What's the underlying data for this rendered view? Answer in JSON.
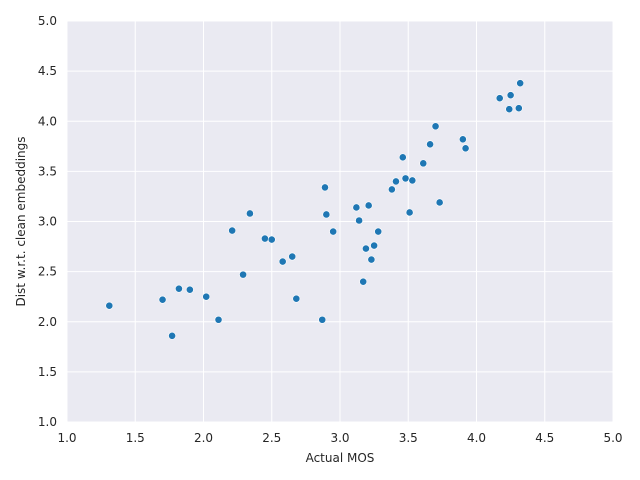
{
  "chart_data": {
    "type": "scatter",
    "title": "",
    "xlabel": "Actual MOS",
    "ylabel": "Dist w.r.t. clean embeddings",
    "xlim": [
      1.0,
      5.0
    ],
    "ylim": [
      1.0,
      5.0
    ],
    "xticks": [
      "1.0",
      "1.5",
      "2.0",
      "2.5",
      "3.0",
      "3.5",
      "4.0",
      "4.5",
      "5.0"
    ],
    "yticks": [
      "1.0",
      "1.5",
      "2.0",
      "2.5",
      "3.0",
      "3.5",
      "4.0",
      "4.5",
      "5.0"
    ],
    "grid": true,
    "background": "#eaeaf2",
    "grid_color": "#ffffff",
    "point_color": "#1f77b4",
    "series": [
      {
        "points": [
          [
            1.31,
            2.16
          ],
          [
            1.7,
            2.22
          ],
          [
            1.77,
            1.86
          ],
          [
            1.82,
            2.33
          ],
          [
            1.9,
            2.32
          ],
          [
            2.02,
            2.25
          ],
          [
            2.11,
            2.02
          ],
          [
            2.21,
            2.91
          ],
          [
            2.29,
            2.47
          ],
          [
            2.34,
            3.08
          ],
          [
            2.45,
            2.83
          ],
          [
            2.5,
            2.82
          ],
          [
            2.58,
            2.6
          ],
          [
            2.65,
            2.65
          ],
          [
            2.68,
            2.23
          ],
          [
            2.87,
            2.02
          ],
          [
            2.89,
            3.34
          ],
          [
            2.9,
            3.07
          ],
          [
            2.95,
            2.9
          ],
          [
            3.12,
            3.14
          ],
          [
            3.14,
            3.01
          ],
          [
            3.17,
            2.4
          ],
          [
            3.19,
            2.73
          ],
          [
            3.21,
            3.16
          ],
          [
            3.23,
            2.62
          ],
          [
            3.25,
            2.76
          ],
          [
            3.28,
            2.9
          ],
          [
            3.38,
            3.32
          ],
          [
            3.41,
            3.4
          ],
          [
            3.46,
            3.64
          ],
          [
            3.48,
            3.43
          ],
          [
            3.51,
            3.09
          ],
          [
            3.53,
            3.41
          ],
          [
            3.61,
            3.58
          ],
          [
            3.66,
            3.77
          ],
          [
            3.7,
            3.95
          ],
          [
            3.73,
            3.19
          ],
          [
            3.9,
            3.82
          ],
          [
            3.92,
            3.73
          ],
          [
            4.17,
            4.23
          ],
          [
            4.24,
            4.12
          ],
          [
            4.25,
            4.26
          ],
          [
            4.31,
            4.13
          ],
          [
            4.32,
            4.38
          ]
        ]
      }
    ]
  }
}
